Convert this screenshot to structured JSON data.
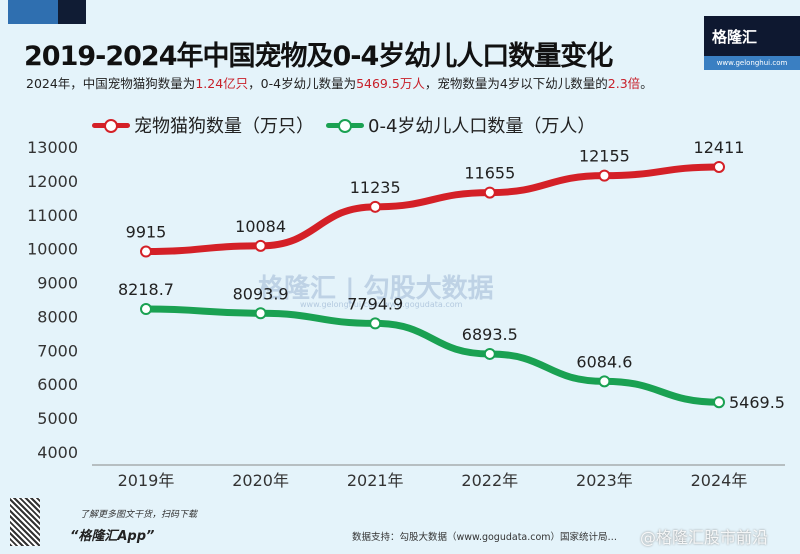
{
  "header": {
    "title": "2019-2024年中国宠物及0-4岁幼儿人口数量变化",
    "subtitle_parts": [
      "2024年，中国宠物猫狗数量为",
      "1.24亿只",
      "，0-4岁幼儿数量为",
      "5469.5万人",
      "，宠物数量为4岁以下幼儿数量的",
      "2.3倍",
      "。"
    ],
    "logo_name": "格隆汇",
    "logo_url": "www.gelonghui.com"
  },
  "watermark": {
    "left": "格隆汇",
    "right": "勾股大数据",
    "small": "www.gelonghui.com  www.gogudata.com"
  },
  "footer": {
    "promo": "了解更多图文干货，扫码下载",
    "app": "“格隆汇App”",
    "source": "数据支持：勾股大数据（www.gogudata.com）国家统计局…",
    "weibo": "@格隆汇股市前沿"
  },
  "colors": {
    "pets": "#d42027",
    "children": "#1aa152"
  },
  "chart_data": {
    "type": "line",
    "categories": [
      "2019年",
      "2020年",
      "2021年",
      "2022年",
      "2023年",
      "2024年"
    ],
    "ylim": [
      4000,
      13000
    ],
    "yticks": [
      4000,
      5000,
      6000,
      7000,
      8000,
      9000,
      10000,
      11000,
      12000,
      13000
    ],
    "grid": false,
    "legend": "top-left",
    "series": [
      {
        "name": "宠物猫狗数量（万只）",
        "values": [
          9915,
          10084,
          11235,
          11655,
          12155,
          12411
        ],
        "labels": [
          "9915",
          "10084",
          "11235",
          "11655",
          "12155",
          "12411"
        ]
      },
      {
        "name": "0-4岁幼儿人口数量（万人）",
        "values": [
          8218.7,
          8093.9,
          7794.9,
          6893.5,
          6084.6,
          5469.5
        ],
        "labels": [
          "8218.7",
          "8093.9",
          "7794.9",
          "6893.5",
          "6084.6",
          "5469.5"
        ]
      }
    ]
  }
}
